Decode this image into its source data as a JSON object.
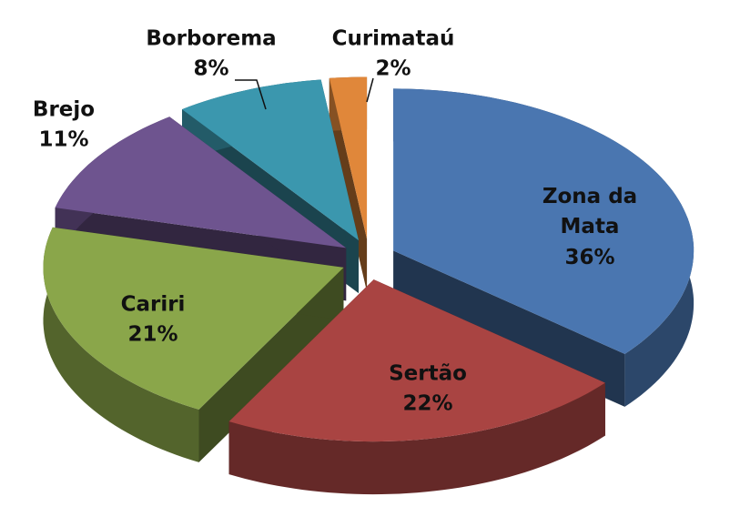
{
  "chart_data": {
    "type": "pie",
    "categories": [
      "Zona da Mata",
      "Sertão",
      "Cariri",
      "Brejo",
      "Borborema",
      "Curimataú"
    ],
    "values": [
      36,
      22,
      21,
      11,
      8,
      2
    ],
    "value_labels": [
      "36%",
      "22%",
      "21%",
      "11%",
      "8%",
      "2%"
    ],
    "colors": [
      "#4a76b0",
      "#a94442",
      "#8aa64a",
      "#6e548f",
      "#3b97ae",
      "#e0873a"
    ],
    "exploded": true,
    "three_d": true
  }
}
